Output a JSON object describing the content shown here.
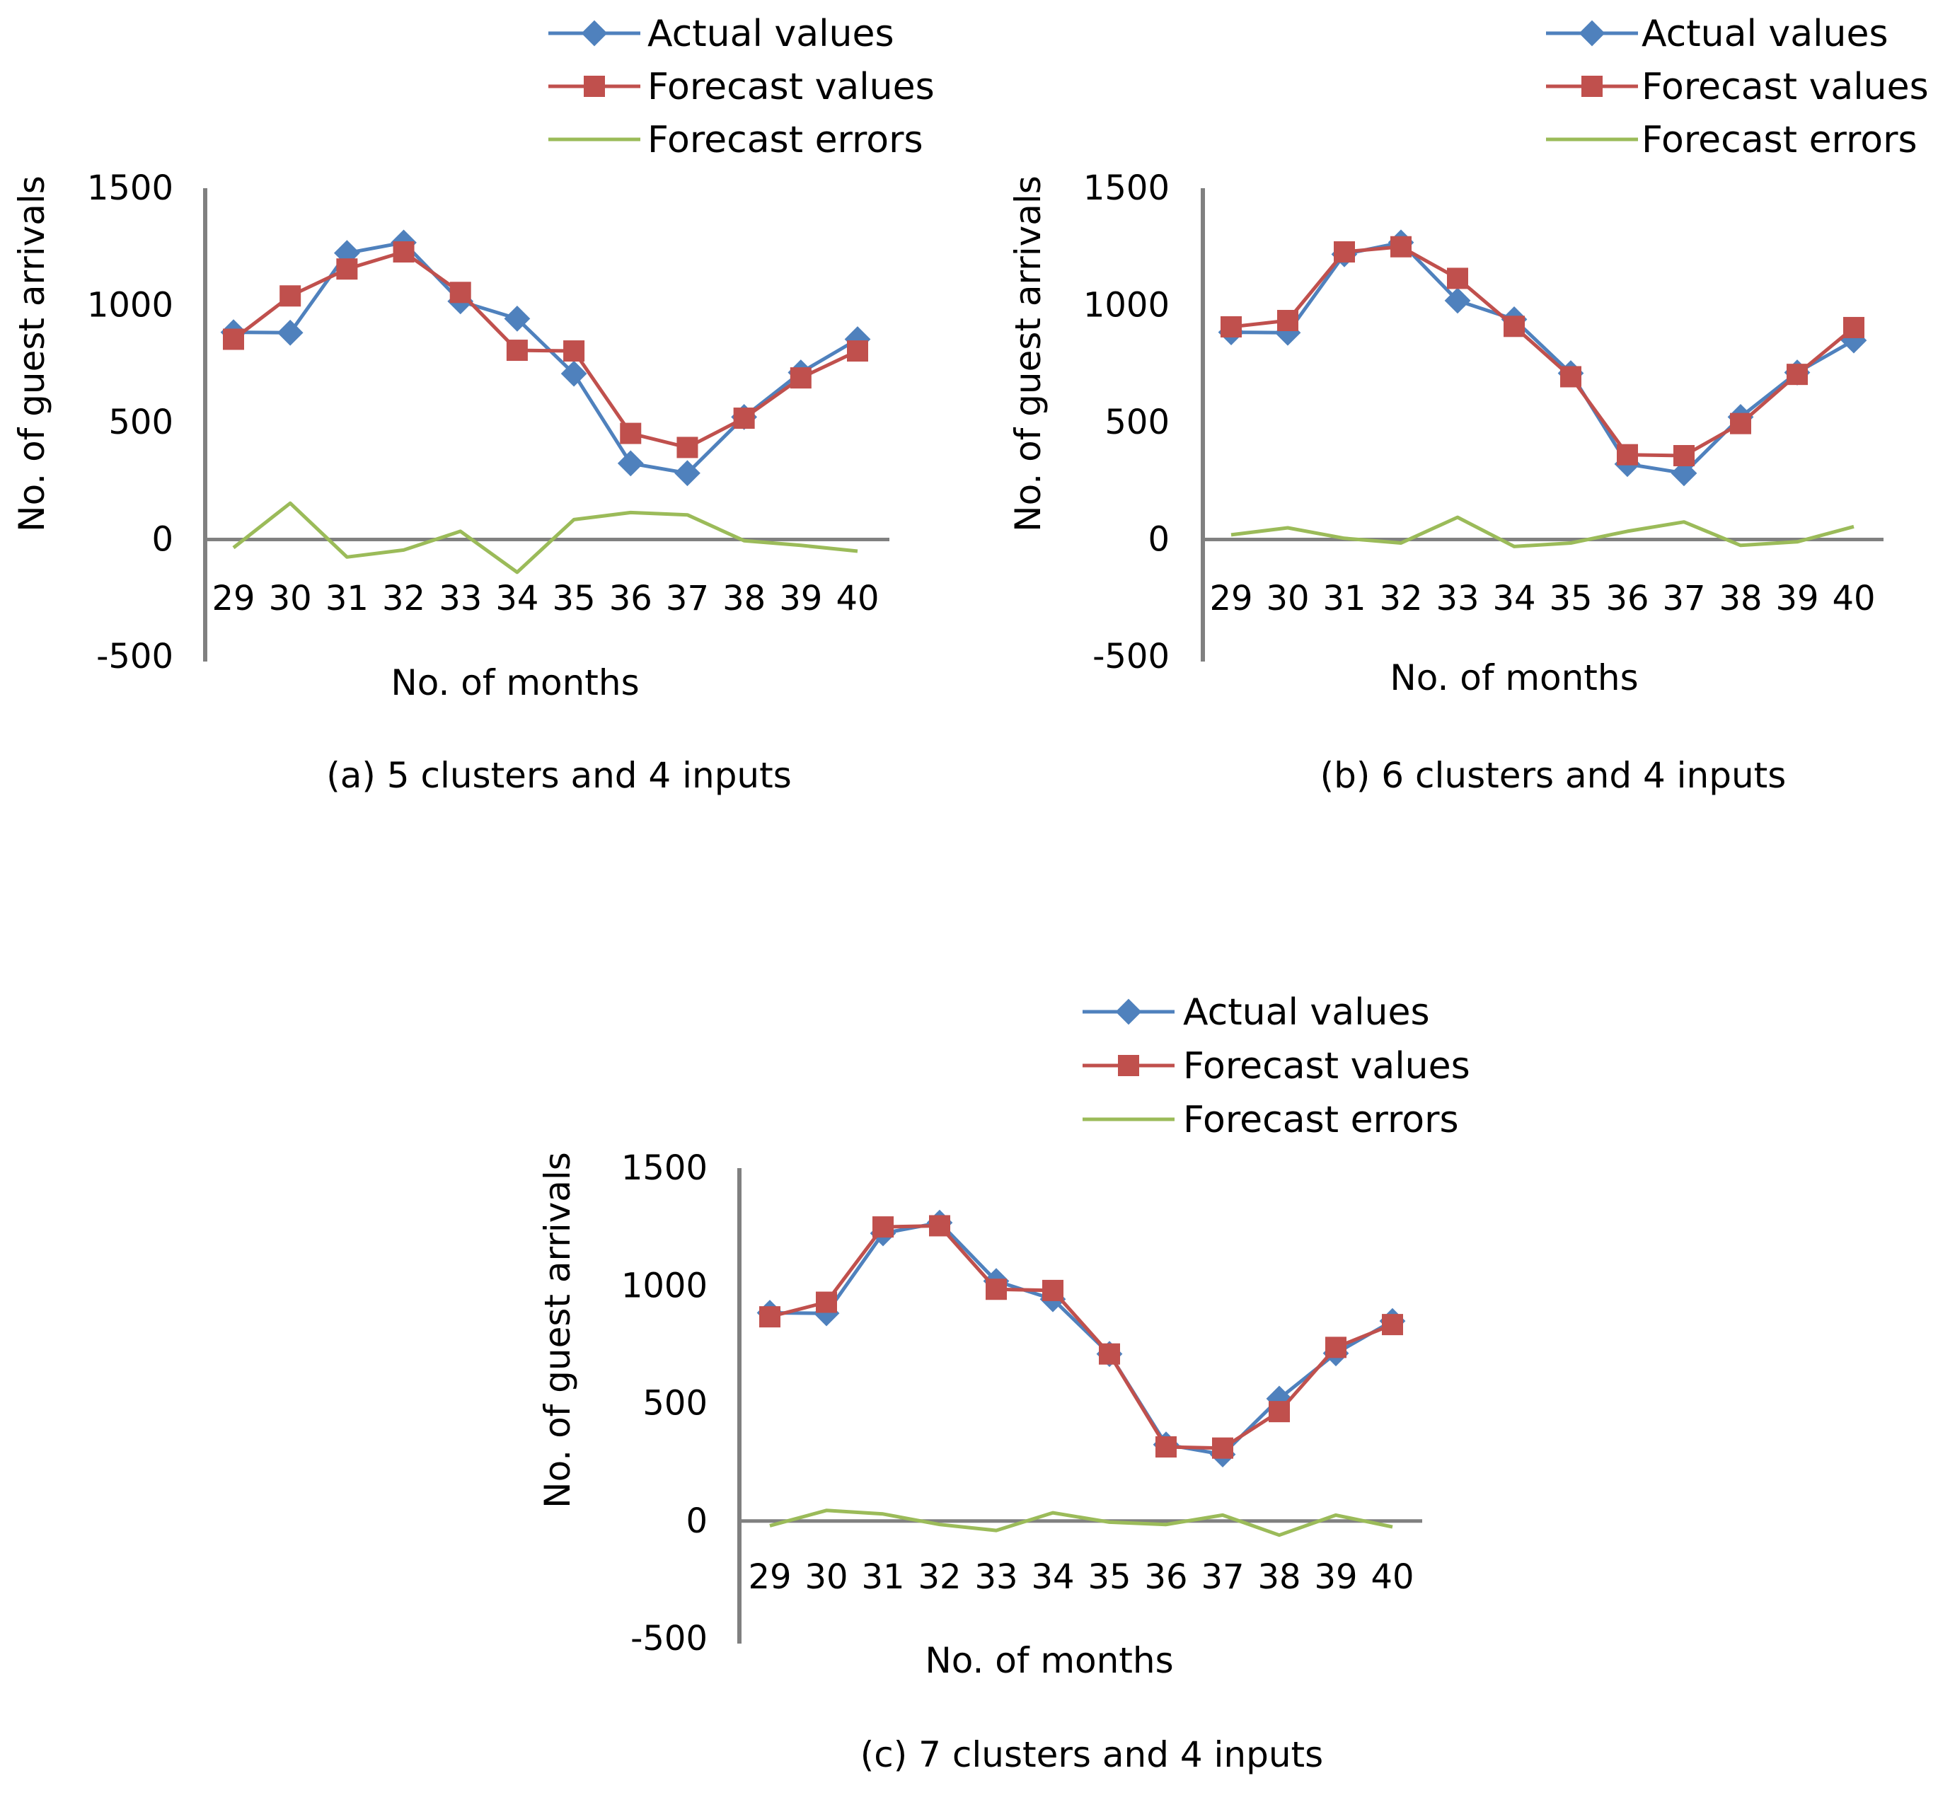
{
  "colors": {
    "actual": "#4F81BD",
    "forecast": "#C0504D",
    "errors": "#9BBB59",
    "axis": "#808080"
  },
  "chart_data": [
    {
      "type": "line",
      "caption": "(a) 5 clusters and 4 inputs",
      "xlabel": "No. of months",
      "ylabel": "No. of guest arrivals",
      "ylim": [
        -500,
        1500
      ],
      "yticks": [
        "1500",
        "1000",
        "500",
        "0",
        "-500"
      ],
      "categories": [
        "29",
        "30",
        "31",
        "32",
        "33",
        "34",
        "35",
        "36",
        "37",
        "38",
        "39",
        "40"
      ],
      "legend": [
        "Actual values",
        "Forecast values",
        "Forecast errors"
      ],
      "series": [
        {
          "name": "Actual values",
          "values": [
            885,
            883,
            1223,
            1268,
            1017,
            943,
            708,
            325,
            283,
            523,
            713,
            855
          ]
        },
        {
          "name": "Forecast values",
          "values": [
            855,
            1040,
            1155,
            1228,
            1055,
            808,
            805,
            453,
            393,
            518,
            690,
            805
          ]
        },
        {
          "name": "Forecast errors",
          "values": [
            -35,
            155,
            -75,
            -45,
            35,
            -140,
            85,
            115,
            105,
            -5,
            -25,
            -50
          ]
        }
      ]
    },
    {
      "type": "line",
      "caption": "(b) 6 clusters and 4 inputs",
      "xlabel": "No. of months",
      "ylabel": "No. of guest arrivals",
      "ylim": [
        -500,
        1500
      ],
      "yticks": [
        "1500",
        "1000",
        "500",
        "0",
        "-500"
      ],
      "categories": [
        "29",
        "30",
        "31",
        "32",
        "33",
        "34",
        "35",
        "36",
        "37",
        "38",
        "39",
        "40"
      ],
      "legend": [
        "Actual values",
        "Forecast values",
        "Forecast errors"
      ],
      "series": [
        {
          "name": "Actual values",
          "values": [
            885,
            883,
            1218,
            1268,
            1020,
            940,
            710,
            322,
            283,
            523,
            713,
            850
          ]
        },
        {
          "name": "Forecast values",
          "values": [
            908,
            935,
            1228,
            1250,
            1115,
            910,
            695,
            362,
            358,
            495,
            705,
            905
          ]
        },
        {
          "name": "Forecast errors",
          "values": [
            20,
            50,
            5,
            -15,
            95,
            -30,
            -15,
            35,
            75,
            -25,
            -10,
            55
          ]
        }
      ]
    },
    {
      "type": "line",
      "caption": "(c) 7 clusters and 4 inputs",
      "xlabel": "No. of months",
      "ylabel": "No. of guest arrivals",
      "ylim": [
        -500,
        1500
      ],
      "yticks": [
        "1500",
        "1000",
        "500",
        "0",
        "-500"
      ],
      "categories": [
        "29",
        "30",
        "31",
        "32",
        "33",
        "34",
        "35",
        "36",
        "37",
        "38",
        "39",
        "40"
      ],
      "legend": [
        "Actual values",
        "Forecast values",
        "Forecast errors"
      ],
      "series": [
        {
          "name": "Actual values",
          "values": [
            885,
            883,
            1223,
            1268,
            1020,
            943,
            710,
            325,
            283,
            520,
            713,
            850
          ]
        },
        {
          "name": "Forecast values",
          "values": [
            868,
            930,
            1250,
            1255,
            985,
            980,
            710,
            315,
            310,
            465,
            738,
            835
          ]
        },
        {
          "name": "Forecast errors",
          "values": [
            -20,
            45,
            30,
            -15,
            -40,
            35,
            -5,
            -15,
            25,
            -60,
            25,
            -25
          ]
        }
      ]
    }
  ]
}
